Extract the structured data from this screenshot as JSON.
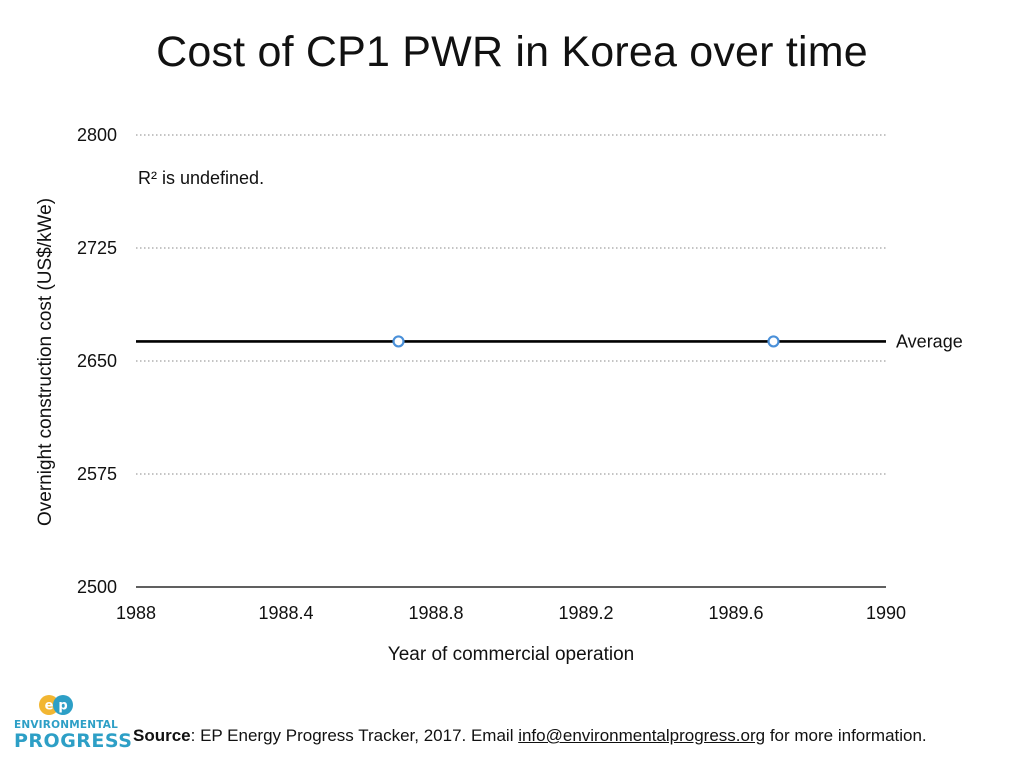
{
  "chart_data": {
    "type": "scatter",
    "title": "Cost of CP1 PWR in Korea over time",
    "xlabel": "Year of commercial operation",
    "ylabel": "Overnight construction cost (US$/kWe)",
    "xlim": [
      1988,
      1990
    ],
    "ylim": [
      2500,
      2800
    ],
    "x_ticks": [
      "1988",
      "1988.4",
      "1988.8",
      "1989.2",
      "1989.6",
      "1990"
    ],
    "y_ticks": [
      "2500",
      "2575",
      "2650",
      "2725",
      "2800"
    ],
    "grid": "horizontal dotted",
    "points": [
      {
        "x": 1988.7,
        "y": 2663
      },
      {
        "x": 1989.7,
        "y": 2663
      }
    ],
    "average": 2663,
    "average_label": "Average",
    "annotation": "R² is undefined.",
    "colors": {
      "marker": "#4a90d9",
      "average_line": "#000000",
      "grid": "#888888"
    }
  },
  "footer": {
    "source_label": "Source",
    "source_text": ": EP Energy Progress Tracker, 2017. Email ",
    "email": "info@environmentalprogress.org",
    "tail": " for more information."
  },
  "logo": {
    "icon": "ep-logo-icon",
    "mark": "EP",
    "line1": "ENVIRONMENTAL",
    "line2": "PROGRESS",
    "colors": {
      "e": "#f2b632",
      "p": "#2d9fc6"
    }
  }
}
